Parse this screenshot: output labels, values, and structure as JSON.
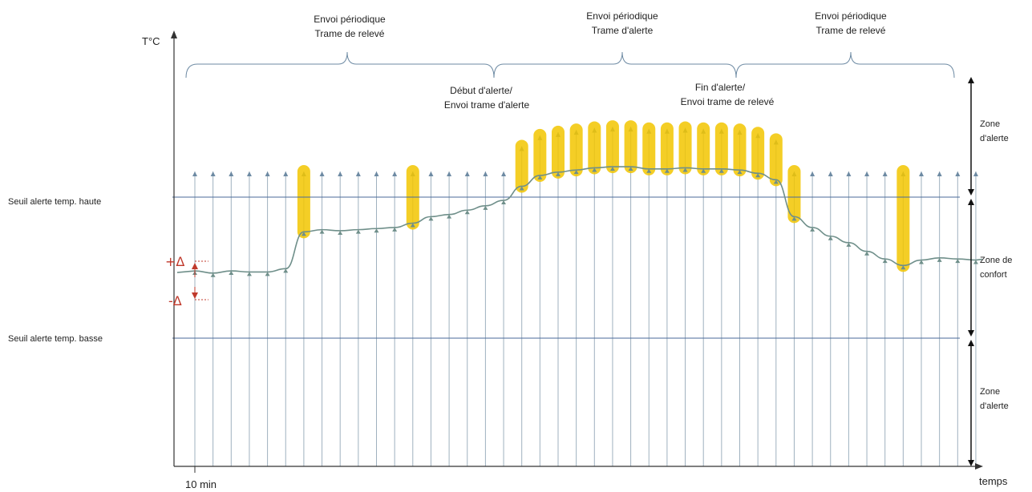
{
  "y_axis_label": "T°C",
  "x_axis_label": "temps",
  "time_step_label": "10 min",
  "thresholds": {
    "high_label": "Seuil alerte temp. haute",
    "low_label": "Seuil alerte temp. basse"
  },
  "delta": {
    "plus": "+Δ",
    "minus": "-Δ"
  },
  "phases": [
    {
      "line1": "Envoi périodique",
      "line2": "Trame de relevé"
    },
    {
      "line1": "Envoi périodique",
      "line2": "Trame d'alerte"
    },
    {
      "line1": "Envoi périodique",
      "line2": "Trame de relevé"
    }
  ],
  "events": {
    "start": {
      "line1": "Début d'alerte/",
      "line2": "Envoi trame d'alerte"
    },
    "end": {
      "line1": "Fin d'alerte/",
      "line2": "Envoi trame de relevé"
    }
  },
  "zones": [
    {
      "line1": "Zone",
      "line2": "d'alerte"
    },
    {
      "line1": "Zone de",
      "line2": "confort"
    },
    {
      "line1": "Zone",
      "line2": "d'alerte"
    }
  ],
  "colors": {
    "axis": "#333333",
    "threshold": "#4a6a9a",
    "curve": "#6f8f8a",
    "sample": "#9fb1bf",
    "highlight": "#f2c500",
    "delta": "#c0392b"
  },
  "chart_data": {
    "type": "line",
    "x_step_minutes": 10,
    "temperature_profile": [
      0.62,
      0.6,
      0.62,
      0.61,
      0.61,
      0.64,
      0.98,
      1.0,
      0.99,
      1.0,
      1.01,
      1.02,
      1.06,
      1.12,
      1.14,
      1.18,
      1.22,
      1.27,
      1.4,
      1.5,
      1.53,
      1.55,
      1.57,
      1.58,
      1.58,
      1.56,
      1.56,
      1.57,
      1.56,
      1.56,
      1.55,
      1.52,
      1.46,
      1.12,
      1.02,
      0.94,
      0.88,
      0.8,
      0.73,
      0.67,
      0.72,
      0.74,
      0.73,
      0.72
    ],
    "high_threshold": 1.3,
    "low_threshold": 0.0,
    "sent_samples": [
      6,
      12,
      18,
      19,
      20,
      21,
      22,
      23,
      24,
      25,
      26,
      27,
      28,
      29,
      30,
      31,
      32,
      33,
      39
    ]
  }
}
